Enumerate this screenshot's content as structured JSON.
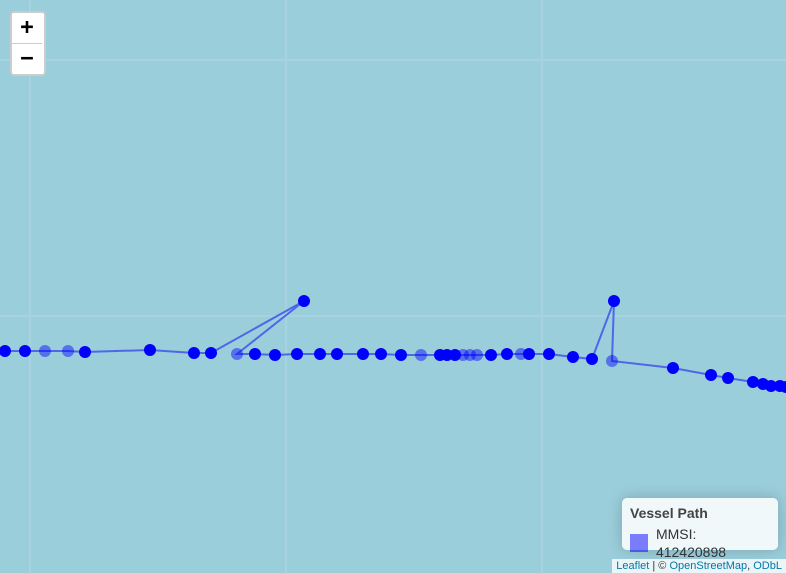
{
  "map": {
    "background_color": "#9bcedb",
    "zoom_in_label": "+",
    "zoom_out_label": "−"
  },
  "track": {
    "color": "#0000ff",
    "line_color": "#3344ee"
  },
  "legend": {
    "title": "Vessel Path",
    "swatch_color": "#0000ff",
    "label": "MMSI: 412420898"
  },
  "attribution": {
    "leaflet": "Leaflet",
    "separator": " | © ",
    "osm": "OpenStreetMap",
    "comma": ", ",
    "odbl": "ODbL"
  }
}
